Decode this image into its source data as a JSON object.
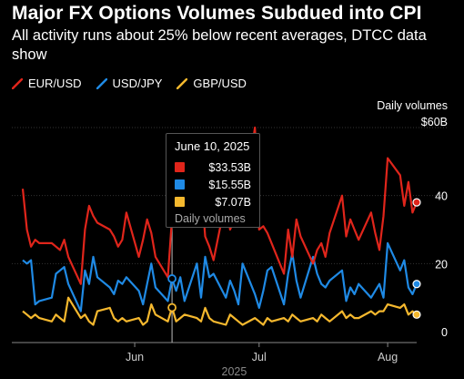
{
  "header": {
    "title": "Major FX Options Volumes Subdued into CPI",
    "subtitle": "All activity runs about 25% below recent averages, DTCC data show"
  },
  "legend": [
    {
      "label": "EUR/USD",
      "color": "#e0251b"
    },
    {
      "label": "USD/JPY",
      "color": "#1f8ae5"
    },
    {
      "label": "GBP/USD",
      "color": "#f5b82e"
    }
  ],
  "tooltip": {
    "date": "June 10, 2025",
    "rows": [
      {
        "value": "$33.53B",
        "color": "#e0251b"
      },
      {
        "value": "$15.55B",
        "color": "#1f8ae5"
      },
      {
        "value": "$7.07B",
        "color": "#f5b82e"
      }
    ],
    "footer": "Daily volumes"
  },
  "chart_data": {
    "type": "line",
    "title": "Major FX Options Volumes Subdued into CPI",
    "subtitle": "All activity runs about 25% below recent averages, DTCC data show",
    "ylabel": "Daily volumes",
    "ylim": [
      0,
      60
    ],
    "y_ticks": [
      {
        "value": 0,
        "label": "0"
      },
      {
        "value": 20,
        "label": "20"
      },
      {
        "value": 40,
        "label": "40"
      },
      {
        "value": 60,
        "label": "$60B"
      }
    ],
    "x_ticks": [
      "Jun",
      "Jul",
      "Aug"
    ],
    "x_year_label": "2025",
    "x_start": "2025-05-05",
    "x_end": "2025-08-08",
    "grid": true,
    "legend_position": "top-left",
    "series": [
      {
        "name": "EUR/USD",
        "color": "#e0251b",
        "points": [
          [
            "2025-05-05",
            42
          ],
          [
            "2025-05-06",
            30
          ],
          [
            "2025-05-07",
            25
          ],
          [
            "2025-05-08",
            27
          ],
          [
            "2025-05-09",
            26
          ],
          [
            "2025-05-12",
            26
          ],
          [
            "2025-05-13",
            25
          ],
          [
            "2025-05-14",
            24
          ],
          [
            "2025-05-15",
            27
          ],
          [
            "2025-05-16",
            22
          ],
          [
            "2025-05-19",
            14
          ],
          [
            "2025-05-20",
            30
          ],
          [
            "2025-05-21",
            37
          ],
          [
            "2025-05-22",
            34
          ],
          [
            "2025-05-23",
            32
          ],
          [
            "2025-05-26",
            30
          ],
          [
            "2025-05-27",
            28
          ],
          [
            "2025-05-28",
            25
          ],
          [
            "2025-05-29",
            27
          ],
          [
            "2025-05-30",
            35
          ],
          [
            "2025-06-02",
            22
          ],
          [
            "2025-06-03",
            27
          ],
          [
            "2025-06-04",
            33
          ],
          [
            "2025-06-05",
            29
          ],
          [
            "2025-06-06",
            22
          ],
          [
            "2025-06-09",
            16
          ],
          [
            "2025-06-10",
            33.53
          ],
          [
            "2025-06-11",
            38
          ],
          [
            "2025-06-12",
            58
          ],
          [
            "2025-06-13",
            47
          ],
          [
            "2025-06-16",
            34
          ],
          [
            "2025-06-17",
            44
          ],
          [
            "2025-06-18",
            28
          ],
          [
            "2025-06-19",
            25
          ],
          [
            "2025-06-20",
            21
          ],
          [
            "2025-06-23",
            39
          ],
          [
            "2025-06-24",
            30
          ],
          [
            "2025-06-25",
            33
          ],
          [
            "2025-06-26",
            44
          ],
          [
            "2025-06-27",
            35
          ],
          [
            "2025-06-30",
            60
          ],
          [
            "2025-07-01",
            30
          ],
          [
            "2025-07-02",
            31
          ],
          [
            "2025-07-03",
            29
          ],
          [
            "2025-07-04",
            26
          ],
          [
            "2025-07-07",
            17
          ],
          [
            "2025-07-08",
            30
          ],
          [
            "2025-07-09",
            22
          ],
          [
            "2025-07-10",
            33
          ],
          [
            "2025-07-11",
            28
          ],
          [
            "2025-07-14",
            20
          ],
          [
            "2025-07-15",
            24
          ],
          [
            "2025-07-16",
            26
          ],
          [
            "2025-07-17",
            22
          ],
          [
            "2025-07-18",
            29
          ],
          [
            "2025-07-21",
            40
          ],
          [
            "2025-07-22",
            28
          ],
          [
            "2025-07-23",
            33
          ],
          [
            "2025-07-24",
            30
          ],
          [
            "2025-07-25",
            27
          ],
          [
            "2025-07-28",
            35
          ],
          [
            "2025-07-29",
            29
          ],
          [
            "2025-07-30",
            24
          ],
          [
            "2025-07-31",
            34
          ],
          [
            "2025-08-01",
            51
          ],
          [
            "2025-08-04",
            46
          ],
          [
            "2025-08-05",
            37
          ],
          [
            "2025-08-06",
            44
          ],
          [
            "2025-08-07",
            35
          ],
          [
            "2025-08-08",
            38
          ]
        ]
      },
      {
        "name": "USD/JPY",
        "color": "#1f8ae5",
        "points": [
          [
            "2025-05-05",
            21
          ],
          [
            "2025-05-06",
            20
          ],
          [
            "2025-05-07",
            21
          ],
          [
            "2025-05-08",
            8
          ],
          [
            "2025-05-09",
            9
          ],
          [
            "2025-05-12",
            10
          ],
          [
            "2025-05-13",
            17
          ],
          [
            "2025-05-14",
            18
          ],
          [
            "2025-05-15",
            19
          ],
          [
            "2025-05-16",
            14
          ],
          [
            "2025-05-19",
            6
          ],
          [
            "2025-05-20",
            18
          ],
          [
            "2025-05-21",
            14
          ],
          [
            "2025-05-22",
            22
          ],
          [
            "2025-05-23",
            16
          ],
          [
            "2025-05-26",
            13
          ],
          [
            "2025-05-27",
            11
          ],
          [
            "2025-05-28",
            15
          ],
          [
            "2025-05-29",
            14
          ],
          [
            "2025-05-30",
            16
          ],
          [
            "2025-06-02",
            12
          ],
          [
            "2025-06-03",
            8
          ],
          [
            "2025-06-04",
            14
          ],
          [
            "2025-06-05",
            20
          ],
          [
            "2025-06-06",
            13
          ],
          [
            "2025-06-09",
            9
          ],
          [
            "2025-06-10",
            15.55
          ],
          [
            "2025-06-11",
            12
          ],
          [
            "2025-06-12",
            16
          ],
          [
            "2025-06-13",
            9
          ],
          [
            "2025-06-16",
            20
          ],
          [
            "2025-06-17",
            10
          ],
          [
            "2025-06-18",
            22
          ],
          [
            "2025-06-19",
            16
          ],
          [
            "2025-06-20",
            17
          ],
          [
            "2025-06-23",
            10
          ],
          [
            "2025-06-24",
            15
          ],
          [
            "2025-06-25",
            12
          ],
          [
            "2025-06-26",
            8
          ],
          [
            "2025-06-27",
            20
          ],
          [
            "2025-06-30",
            11
          ],
          [
            "2025-07-01",
            7
          ],
          [
            "2025-07-02",
            12
          ],
          [
            "2025-07-03",
            18
          ],
          [
            "2025-07-04",
            19
          ],
          [
            "2025-07-07",
            8
          ],
          [
            "2025-07-08",
            17
          ],
          [
            "2025-07-09",
            23
          ],
          [
            "2025-07-10",
            15
          ],
          [
            "2025-07-11",
            10
          ],
          [
            "2025-07-14",
            22
          ],
          [
            "2025-07-15",
            17
          ],
          [
            "2025-07-16",
            14
          ],
          [
            "2025-07-17",
            13
          ],
          [
            "2025-07-18",
            15
          ],
          [
            "2025-07-21",
            18
          ],
          [
            "2025-07-22",
            9
          ],
          [
            "2025-07-23",
            13
          ],
          [
            "2025-07-24",
            11
          ],
          [
            "2025-07-25",
            14
          ],
          [
            "2025-07-28",
            10
          ],
          [
            "2025-07-29",
            12
          ],
          [
            "2025-07-30",
            14
          ],
          [
            "2025-07-31",
            10
          ],
          [
            "2025-08-01",
            26
          ],
          [
            "2025-08-04",
            18
          ],
          [
            "2025-08-05",
            21
          ],
          [
            "2025-08-06",
            13
          ],
          [
            "2025-08-07",
            11
          ],
          [
            "2025-08-08",
            14
          ]
        ]
      },
      {
        "name": "GBP/USD",
        "color": "#f5b82e",
        "points": [
          [
            "2025-05-05",
            6
          ],
          [
            "2025-05-06",
            5
          ],
          [
            "2025-05-07",
            4
          ],
          [
            "2025-05-08",
            5
          ],
          [
            "2025-05-09",
            4
          ],
          [
            "2025-05-12",
            3
          ],
          [
            "2025-05-13",
            5
          ],
          [
            "2025-05-14",
            4
          ],
          [
            "2025-05-15",
            3
          ],
          [
            "2025-05-16",
            10
          ],
          [
            "2025-05-19",
            4
          ],
          [
            "2025-05-20",
            5
          ],
          [
            "2025-05-21",
            3
          ],
          [
            "2025-05-22",
            2
          ],
          [
            "2025-05-23",
            6
          ],
          [
            "2025-05-26",
            7
          ],
          [
            "2025-05-27",
            4
          ],
          [
            "2025-05-28",
            3
          ],
          [
            "2025-05-29",
            4
          ],
          [
            "2025-05-30",
            3
          ],
          [
            "2025-06-02",
            4
          ],
          [
            "2025-06-03",
            2
          ],
          [
            "2025-06-04",
            3
          ],
          [
            "2025-06-05",
            8
          ],
          [
            "2025-06-06",
            5
          ],
          [
            "2025-06-09",
            3
          ],
          [
            "2025-06-10",
            7.07
          ],
          [
            "2025-06-11",
            3
          ],
          [
            "2025-06-12",
            4
          ],
          [
            "2025-06-13",
            5
          ],
          [
            "2025-06-16",
            4
          ],
          [
            "2025-06-17",
            3
          ],
          [
            "2025-06-18",
            7
          ],
          [
            "2025-06-19",
            4
          ],
          [
            "2025-06-20",
            3
          ],
          [
            "2025-06-23",
            2
          ],
          [
            "2025-06-24",
            5
          ],
          [
            "2025-06-25",
            4
          ],
          [
            "2025-06-26",
            3
          ],
          [
            "2025-06-27",
            2
          ],
          [
            "2025-06-30",
            4
          ],
          [
            "2025-07-01",
            3
          ],
          [
            "2025-07-02",
            2
          ],
          [
            "2025-07-03",
            4
          ],
          [
            "2025-07-04",
            3
          ],
          [
            "2025-07-07",
            4
          ],
          [
            "2025-07-08",
            3
          ],
          [
            "2025-07-09",
            5
          ],
          [
            "2025-07-10",
            4
          ],
          [
            "2025-07-11",
            3
          ],
          [
            "2025-07-14",
            4
          ],
          [
            "2025-07-15",
            3
          ],
          [
            "2025-07-16",
            5
          ],
          [
            "2025-07-17",
            4
          ],
          [
            "2025-07-18",
            3
          ],
          [
            "2025-07-21",
            6
          ],
          [
            "2025-07-22",
            4
          ],
          [
            "2025-07-23",
            5
          ],
          [
            "2025-07-24",
            4
          ],
          [
            "2025-07-25",
            4
          ],
          [
            "2025-07-28",
            6
          ],
          [
            "2025-07-29",
            5
          ],
          [
            "2025-07-30",
            6
          ],
          [
            "2025-07-31",
            6
          ],
          [
            "2025-08-01",
            8
          ],
          [
            "2025-08-04",
            7
          ],
          [
            "2025-08-05",
            8
          ],
          [
            "2025-08-06",
            5
          ],
          [
            "2025-08-07",
            6
          ],
          [
            "2025-08-08",
            5
          ]
        ]
      }
    ],
    "highlight": {
      "date": "2025-06-10",
      "values": [
        33.53,
        15.55,
        7.07
      ]
    }
  }
}
